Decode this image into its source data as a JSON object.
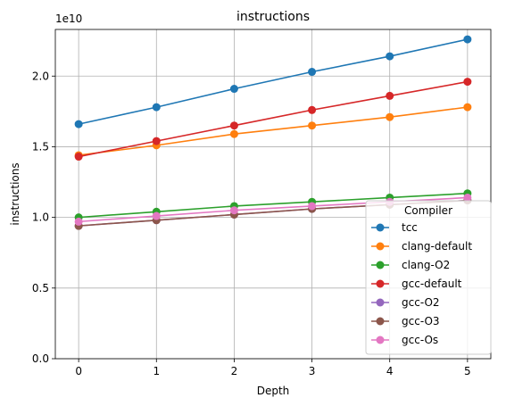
{
  "chart_data": {
    "type": "line",
    "title": "instructions",
    "xlabel": "Depth",
    "ylabel": "instructions",
    "offset_text": "1e10",
    "x": [
      0,
      1,
      2,
      3,
      4,
      5
    ],
    "xlim": [
      -0.3,
      5.3
    ],
    "ylim": [
      0,
      2.33
    ],
    "y_unit_scale": 10000000000.0,
    "x_ticks": [
      "0",
      "1",
      "2",
      "3",
      "4",
      "5"
    ],
    "y_ticks": [
      {
        "value": 0.0,
        "label": "0.0"
      },
      {
        "value": 0.5,
        "label": "0.5"
      },
      {
        "value": 1.0,
        "label": "1.0"
      },
      {
        "value": 1.5,
        "label": "1.5"
      },
      {
        "value": 2.0,
        "label": "2.0"
      }
    ],
    "grid": true,
    "legend": {
      "title": "Compiler",
      "placement": "lower-right"
    },
    "series": [
      {
        "name": "tcc",
        "color": "#1f77b4",
        "values": [
          1.66,
          1.78,
          1.91,
          2.03,
          2.14,
          2.26
        ]
      },
      {
        "name": "clang-default",
        "color": "#ff7f0e",
        "values": [
          1.44,
          1.51,
          1.59,
          1.65,
          1.71,
          1.78
        ]
      },
      {
        "name": "clang-O2",
        "color": "#2ca02c",
        "values": [
          1.0,
          1.04,
          1.08,
          1.11,
          1.14,
          1.17
        ]
      },
      {
        "name": "gcc-default",
        "color": "#d62728",
        "values": [
          1.43,
          1.54,
          1.65,
          1.76,
          1.86,
          1.96
        ]
      },
      {
        "name": "gcc-O2",
        "color": "#9467bd",
        "values": [
          0.94,
          0.98,
          1.02,
          1.06,
          1.09,
          1.12
        ]
      },
      {
        "name": "gcc-O3",
        "color": "#8c564b",
        "values": [
          0.94,
          0.98,
          1.02,
          1.06,
          1.09,
          1.12
        ]
      },
      {
        "name": "gcc-Os",
        "color": "#e377c2",
        "values": [
          0.97,
          1.01,
          1.05,
          1.08,
          1.11,
          1.14
        ]
      }
    ]
  }
}
